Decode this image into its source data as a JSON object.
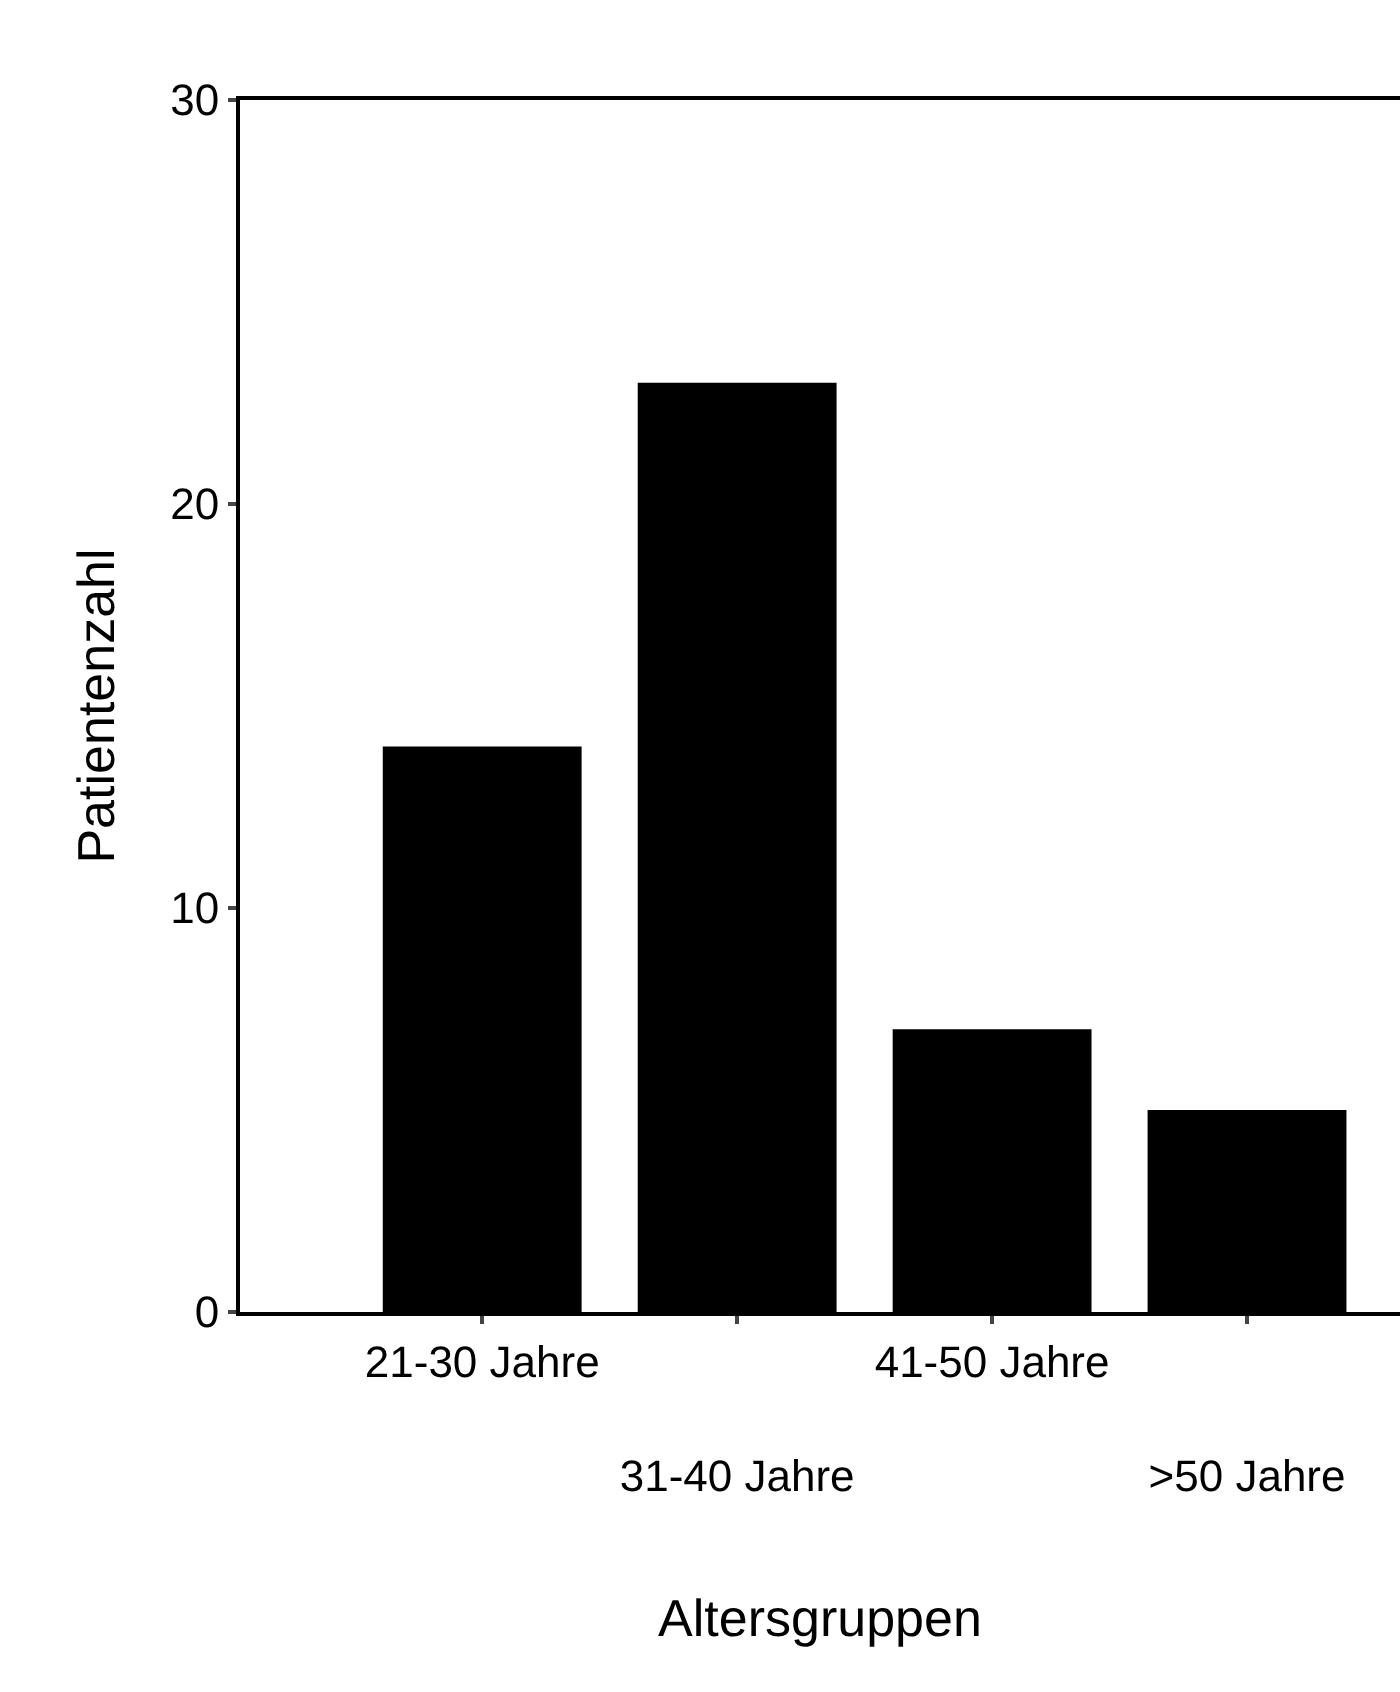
{
  "chart_data": {
    "type": "bar",
    "xlabel": "Altersgruppen",
    "ylabel": "Patientenzahl",
    "categories": [
      "21-30 Jahre",
      "31-40 Jahre",
      "41-50 Jahre",
      ">50 Jahre"
    ],
    "values": [
      14,
      23,
      7,
      5
    ],
    "color": "#000000",
    "ylim": [
      0,
      30
    ],
    "yticks": [
      0,
      10,
      20,
      30
    ],
    "legend": false
  }
}
